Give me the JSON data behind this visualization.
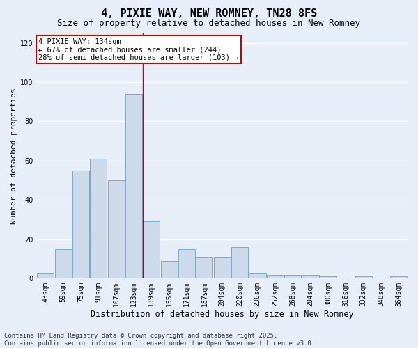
{
  "title": "4, PIXIE WAY, NEW ROMNEY, TN28 8FS",
  "subtitle": "Size of property relative to detached houses in New Romney",
  "xlabel": "Distribution of detached houses by size in New Romney",
  "ylabel": "Number of detached properties",
  "categories": [
    "43sqm",
    "59sqm",
    "75sqm",
    "91sqm",
    "107sqm",
    "123sqm",
    "139sqm",
    "155sqm",
    "171sqm",
    "187sqm",
    "204sqm",
    "220sqm",
    "236sqm",
    "252sqm",
    "268sqm",
    "284sqm",
    "300sqm",
    "316sqm",
    "332sqm",
    "348sqm",
    "364sqm"
  ],
  "values": [
    3,
    15,
    55,
    61,
    50,
    94,
    29,
    9,
    15,
    11,
    11,
    16,
    3,
    2,
    2,
    2,
    1,
    0,
    1,
    0,
    1
  ],
  "bar_color": "#ccdaec",
  "bar_edge_color": "#7aaac8",
  "bg_color": "#e8eef8",
  "grid_color": "#ffffff",
  "annotation_text": "4 PIXIE WAY: 134sqm\n← 67% of detached houses are smaller (244)\n28% of semi-detached houses are larger (103) →",
  "annotation_box_color": "#ffffff",
  "annotation_box_edge": "#cc0000",
  "vline_x": 5.5,
  "vline_color": "#cc0000",
  "ylim": [
    0,
    125
  ],
  "yticks": [
    0,
    20,
    40,
    60,
    80,
    100,
    120
  ],
  "footnote": "Contains HM Land Registry data © Crown copyright and database right 2025.\nContains public sector information licensed under the Open Government Licence v3.0.",
  "title_fontsize": 11,
  "subtitle_fontsize": 9,
  "xlabel_fontsize": 8.5,
  "ylabel_fontsize": 8,
  "tick_fontsize": 7,
  "annotation_fontsize": 7.5,
  "footnote_fontsize": 6.5
}
